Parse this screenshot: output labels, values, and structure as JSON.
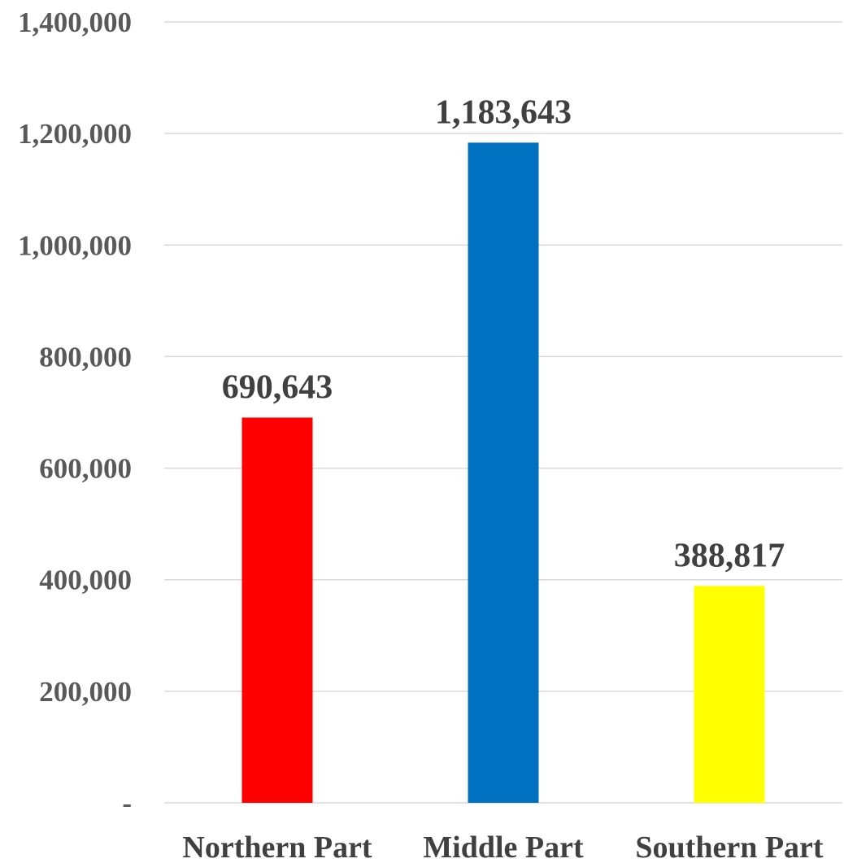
{
  "chart_data": {
    "type": "bar",
    "title": "",
    "xlabel": "",
    "ylabel": "",
    "categories": [
      "Northern Part",
      "Middle Part",
      "Southern Part"
    ],
    "values": [
      690643,
      1183643,
      388817
    ],
    "data_labels": [
      "690,643",
      "1,183,643",
      "388,817"
    ],
    "bar_colors": [
      "#ff0000",
      "#0070c0",
      "#ffff00"
    ],
    "ylim": [
      0,
      1400000
    ],
    "yticks": [
      0,
      200000,
      400000,
      600000,
      800000,
      1000000,
      1200000,
      1400000
    ],
    "ytick_labels": [
      "-",
      "200,000",
      "400,000",
      "600,000",
      "800,000",
      "1,000,000",
      "1,200,000",
      "1,400,000"
    ],
    "grid": true,
    "legend": "none"
  }
}
